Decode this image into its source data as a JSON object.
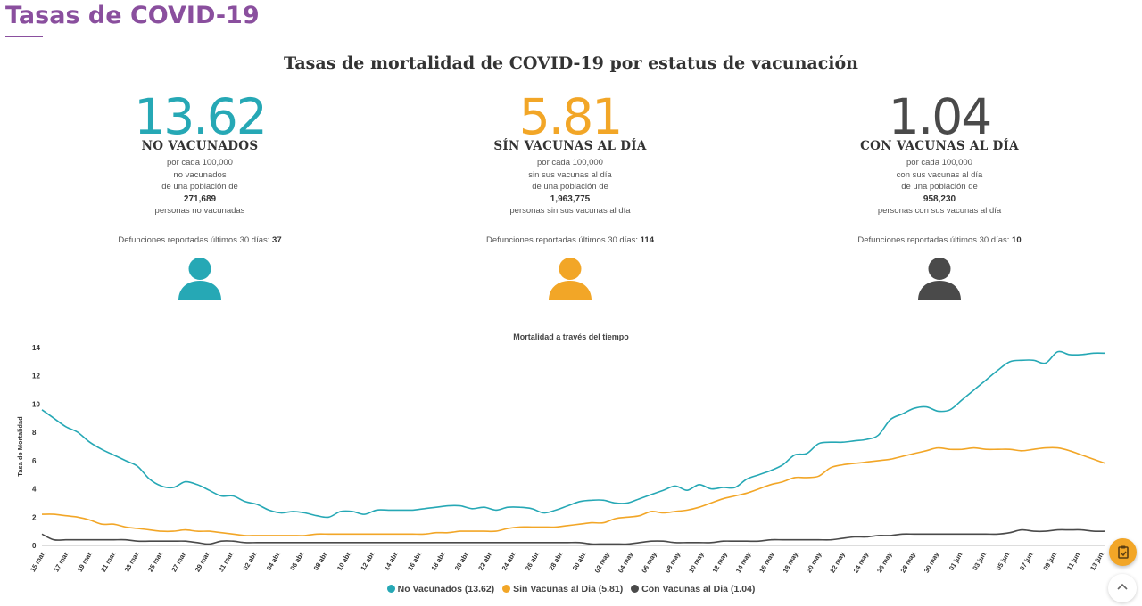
{
  "page": {
    "title": "Tasas de COVID-19"
  },
  "section": {
    "title": "Tasas de mortalidad de COVID-19 por estatus de vacunación"
  },
  "stats": [
    {
      "value": "13.62",
      "label": "NO VACUNADOS",
      "line1": "por cada 100,000",
      "line2": "no vacunados",
      "line3": "de una población de",
      "population": "271,689",
      "line4": "personas no vacunadas",
      "deaths_label": "Defunciones reportadas últimos 30 días:",
      "deaths": "37",
      "color": "#26a8b5",
      "icon": "person-icon"
    },
    {
      "value": "5.81",
      "label": "SÍN VACUNAS AL DÍA",
      "line1": "por cada 100,000",
      "line2": "sin sus vacunas al día",
      "line3": "de una población de",
      "population": "1,963,775",
      "line4": "personas sin sus vacunas al día",
      "deaths_label": "Defunciones reportadas últimos 30 días:",
      "deaths": "114",
      "color": "#f2a627",
      "icon": "person-icon"
    },
    {
      "value": "1.04",
      "label": "CON VACUNAS AL DÍA",
      "line1": "por cada 100,000",
      "line2": "con sus vacunas al día",
      "line3": "de una población de",
      "population": "958,230",
      "line4": "personas con sus vacunas al día",
      "deaths_label": "Defunciones reportadas últimos 30 días:",
      "deaths": "10",
      "color": "#4a4a4a",
      "icon": "person-icon"
    }
  ],
  "chart_data": {
    "type": "line",
    "title": "Mortalidad a través del tiempo",
    "xlabel": "",
    "ylabel": "Tasa de Mortalidad",
    "ylim": [
      0,
      14
    ],
    "yticks": [
      0,
      2,
      4,
      6,
      8,
      10,
      12,
      14
    ],
    "grid": false,
    "legend_position": "bottom",
    "x_tick_labels": [
      "15 mar.",
      "17 mar.",
      "19 mar.",
      "21 mar.",
      "23 mar.",
      "25 mar.",
      "27 mar.",
      "29 mar.",
      "31 mar.",
      "02 abr.",
      "04 abr.",
      "06 abr.",
      "08 abr.",
      "10 abr.",
      "12 abr.",
      "14 abr.",
      "16 abr.",
      "18 abr.",
      "20 abr.",
      "22 abr.",
      "24 abr.",
      "26 abr.",
      "28 abr.",
      "30 abr.",
      "02 may.",
      "04 may.",
      "06 may.",
      "08 may.",
      "10 may.",
      "12 may.",
      "14 may.",
      "16 may.",
      "18 may.",
      "20 may.",
      "22 may.",
      "24 may.",
      "26 may.",
      "28 may.",
      "30 may.",
      "01 jun.",
      "03 jun.",
      "05 jun.",
      "07 jun.",
      "09 jun.",
      "11 jun.",
      "13 jun."
    ],
    "series": [
      {
        "name": "No Vacunados (13.62)",
        "color": "#26a8b5",
        "values": [
          9.6,
          9.0,
          8.4,
          8.0,
          7.3,
          6.8,
          6.4,
          6.0,
          5.6,
          4.7,
          4.2,
          4.1,
          4.5,
          4.3,
          3.9,
          3.5,
          3.5,
          3.1,
          2.9,
          2.5,
          2.3,
          2.4,
          2.3,
          2.1,
          2.0,
          2.4,
          2.4,
          2.2,
          2.5,
          2.5,
          2.5,
          2.5,
          2.6,
          2.7,
          2.8,
          2.8,
          2.6,
          2.7,
          2.5,
          2.7,
          2.7,
          2.6,
          2.3,
          2.5,
          2.8,
          3.1,
          3.2,
          3.2,
          3.0,
          3.0,
          3.3,
          3.6,
          3.9,
          4.2,
          3.9,
          4.3,
          4.0,
          4.1,
          4.1,
          4.7,
          5.0,
          5.3,
          5.7,
          6.4,
          6.5,
          7.2,
          7.3,
          7.3,
          7.4,
          7.5,
          7.8,
          8.9,
          9.3,
          9.7,
          9.8,
          9.5,
          9.6,
          10.3,
          11.0,
          11.7,
          12.4,
          13.0,
          13.1,
          13.1,
          12.9,
          13.7,
          13.5,
          13.5,
          13.6,
          13.6
        ]
      },
      {
        "name": "Sin Vacunas al Dia (5.81)",
        "color": "#f2a627",
        "values": [
          2.2,
          2.2,
          2.1,
          2.0,
          1.8,
          1.5,
          1.5,
          1.3,
          1.2,
          1.1,
          1.0,
          1.0,
          1.1,
          1.0,
          1.0,
          0.9,
          0.8,
          0.7,
          0.7,
          0.7,
          0.7,
          0.7,
          0.7,
          0.8,
          0.8,
          0.8,
          0.8,
          0.8,
          0.8,
          0.8,
          0.8,
          0.8,
          0.8,
          0.9,
          0.9,
          1.0,
          1.0,
          1.0,
          1.0,
          1.2,
          1.3,
          1.3,
          1.3,
          1.3,
          1.4,
          1.5,
          1.6,
          1.6,
          1.9,
          2.0,
          2.1,
          2.4,
          2.3,
          2.4,
          2.5,
          2.7,
          3.0,
          3.3,
          3.5,
          3.7,
          4.0,
          4.3,
          4.5,
          4.8,
          4.8,
          4.9,
          5.5,
          5.7,
          5.8,
          5.9,
          6.0,
          6.1,
          6.3,
          6.5,
          6.7,
          6.9,
          6.8,
          6.8,
          6.9,
          6.8,
          6.8,
          6.8,
          6.7,
          6.8,
          6.9,
          6.9,
          6.7,
          6.4,
          6.1,
          5.8
        ]
      },
      {
        "name": "Con Vacunas al Dia (1.04)",
        "color": "#4a4a4a",
        "values": [
          0.8,
          0.4,
          0.4,
          0.4,
          0.4,
          0.4,
          0.4,
          0.4,
          0.3,
          0.3,
          0.3,
          0.3,
          0.3,
          0.2,
          0.1,
          0.3,
          0.3,
          0.2,
          0.2,
          0.2,
          0.2,
          0.2,
          0.2,
          0.2,
          0.2,
          0.2,
          0.2,
          0.2,
          0.2,
          0.2,
          0.2,
          0.2,
          0.2,
          0.2,
          0.2,
          0.2,
          0.2,
          0.2,
          0.2,
          0.2,
          0.2,
          0.2,
          0.2,
          0.2,
          0.2,
          0.2,
          0.1,
          0.1,
          0.1,
          0.1,
          0.2,
          0.3,
          0.3,
          0.2,
          0.2,
          0.2,
          0.2,
          0.3,
          0.3,
          0.3,
          0.3,
          0.4,
          0.4,
          0.4,
          0.4,
          0.4,
          0.4,
          0.5,
          0.6,
          0.6,
          0.7,
          0.7,
          0.8,
          0.8,
          0.8,
          0.8,
          0.8,
          0.8,
          0.8,
          0.8,
          0.8,
          0.9,
          1.1,
          1.0,
          1.0,
          1.1,
          1.1,
          1.1,
          1.0,
          1.0
        ]
      }
    ]
  }
}
